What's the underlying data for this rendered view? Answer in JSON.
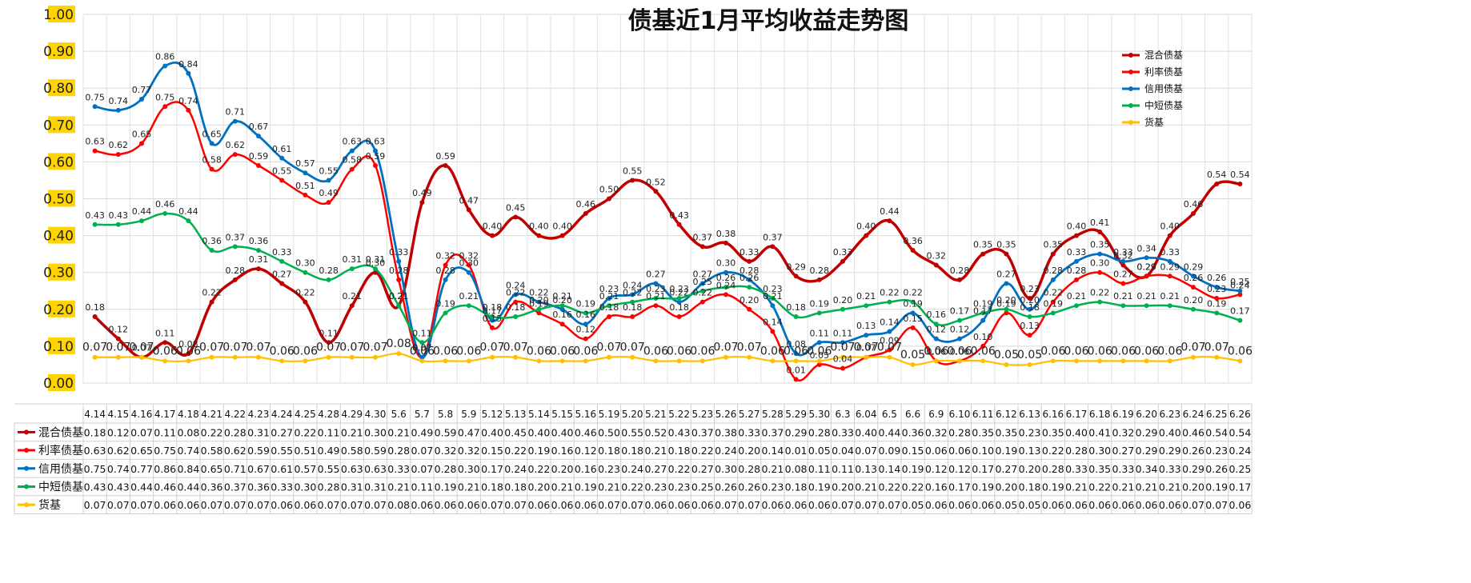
{
  "chart_data": {
    "type": "line",
    "title": "债基近1月平均收益走势图",
    "ylim": [
      0,
      1.0
    ],
    "yticks": [
      "0.00",
      "0.10",
      "0.20",
      "0.30",
      "0.40",
      "0.50",
      "0.60",
      "0.70",
      "0.80",
      "0.90",
      "1.00"
    ],
    "grid": true,
    "legend_position": "top-right",
    "categories": [
      "4.14",
      "4.15",
      "4.16",
      "4.17",
      "4.18",
      "4.21",
      "4.22",
      "4.23",
      "4.24",
      "4.25",
      "4.28",
      "4.29",
      "4.30",
      "5.6",
      "5.7",
      "5.8",
      "5.9",
      "5.12",
      "5.13",
      "5.14",
      "5.15",
      "5.16",
      "5.19",
      "5.20",
      "5.21",
      "5.22",
      "5.23",
      "5.26",
      "5.27",
      "5.28",
      "5.29",
      "5.30",
      "6.3",
      "6.04",
      "6.5",
      "6.6",
      "6.9",
      "6.10",
      "6.11",
      "6.12",
      "6.13",
      "6.16",
      "6.17",
      "6.18",
      "6.19",
      "6.20",
      "6.23",
      "6.24",
      "6.25",
      "6.26"
    ],
    "series": [
      {
        "name": "混合债基",
        "color": "#c00000",
        "values": [
          0.18,
          0.12,
          0.07,
          0.11,
          0.08,
          0.22,
          0.28,
          0.31,
          0.27,
          0.22,
          0.11,
          0.21,
          0.3,
          0.21,
          0.49,
          0.59,
          0.47,
          0.4,
          0.45,
          0.4,
          0.4,
          0.46,
          0.5,
          0.55,
          0.52,
          0.43,
          0.37,
          0.38,
          0.33,
          0.37,
          0.29,
          0.28,
          0.33,
          0.4,
          0.44,
          0.36,
          0.32,
          0.28,
          0.35,
          0.35,
          0.23,
          0.35,
          0.4,
          0.41,
          0.32,
          0.29,
          0.4,
          0.46,
          0.54,
          0.54
        ]
      },
      {
        "name": "利率债基",
        "color": "#ff0000",
        "values": [
          0.63,
          0.62,
          0.65,
          0.75,
          0.74,
          0.58,
          0.62,
          0.59,
          0.55,
          0.51,
          0.49,
          0.58,
          0.59,
          0.28,
          0.07,
          0.32,
          0.32,
          0.15,
          0.22,
          0.19,
          0.16,
          0.12,
          0.18,
          0.18,
          0.21,
          0.18,
          0.22,
          0.24,
          0.2,
          0.14,
          0.01,
          0.05,
          0.04,
          0.07,
          0.09,
          0.15,
          0.06,
          0.06,
          0.1,
          0.19,
          0.13,
          0.22,
          0.28,
          0.3,
          0.27,
          0.29,
          0.29,
          0.26,
          0.23,
          0.24
        ]
      },
      {
        "name": "信用债基",
        "color": "#0070c0",
        "values": [
          0.75,
          0.74,
          0.77,
          0.86,
          0.84,
          0.65,
          0.71,
          0.67,
          0.61,
          0.57,
          0.55,
          0.63,
          0.63,
          0.33,
          0.07,
          0.28,
          0.3,
          0.17,
          0.24,
          0.22,
          0.2,
          0.16,
          0.23,
          0.24,
          0.27,
          0.22,
          0.27,
          0.3,
          0.28,
          0.21,
          0.08,
          0.11,
          0.11,
          0.13,
          0.14,
          0.19,
          0.12,
          0.12,
          0.17,
          0.27,
          0.2,
          0.28,
          0.33,
          0.35,
          0.33,
          0.34,
          0.33,
          0.29,
          0.26,
          0.25
        ]
      },
      {
        "name": "中短债基",
        "color": "#00b050",
        "values": [
          0.43,
          0.43,
          0.44,
          0.46,
          0.44,
          0.36,
          0.37,
          0.36,
          0.33,
          0.3,
          0.28,
          0.31,
          0.31,
          0.21,
          0.11,
          0.19,
          0.21,
          0.18,
          0.18,
          0.2,
          0.21,
          0.19,
          0.21,
          0.22,
          0.23,
          0.23,
          0.25,
          0.26,
          0.26,
          0.23,
          0.18,
          0.19,
          0.2,
          0.21,
          0.22,
          0.22,
          0.16,
          0.17,
          0.19,
          0.2,
          0.18,
          0.19,
          0.21,
          0.22,
          0.21,
          0.21,
          0.21,
          0.2,
          0.19,
          0.17
        ]
      },
      {
        "name": "货基",
        "color": "#ffc000",
        "values": [
          0.07,
          0.07,
          0.07,
          0.06,
          0.06,
          0.07,
          0.07,
          0.07,
          0.06,
          0.06,
          0.07,
          0.07,
          0.07,
          0.08,
          0.06,
          0.06,
          0.06,
          0.07,
          0.07,
          0.06,
          0.06,
          0.06,
          0.07,
          0.07,
          0.06,
          0.06,
          0.06,
          0.07,
          0.07,
          0.06,
          0.06,
          0.06,
          0.07,
          0.07,
          0.07,
          0.05,
          0.06,
          0.06,
          0.06,
          0.05,
          0.05,
          0.06,
          0.06,
          0.06,
          0.06,
          0.06,
          0.06,
          0.07,
          0.07,
          0.06
        ]
      }
    ]
  }
}
